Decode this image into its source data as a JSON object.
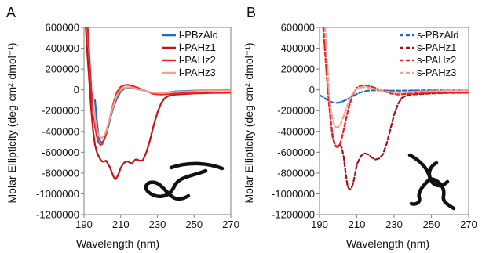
{
  "chart_data": [
    {
      "type": "line",
      "panel_label": "A",
      "xlabel": "Wavelength (nm)",
      "ylabel": "Molar Ellipticity (deg·cm²·dmol⁻¹)",
      "xlim": [
        190,
        270
      ],
      "ylim": [
        -1200000,
        600000
      ],
      "x_ticks": [
        190,
        210,
        230,
        250,
        270
      ],
      "y_ticks": [
        600000,
        400000,
        200000,
        0,
        -200000,
        -400000,
        -600000,
        -800000,
        -1000000,
        -1200000
      ],
      "y_tick_labels": [
        "600000",
        "400000",
        "200000",
        "0",
        "-200000",
        "-400000",
        "-600000",
        "-800000",
        "-1000000",
        "-1200000"
      ],
      "legend_position": "top-right",
      "inset_icon": "wormlike-chain-icon",
      "series": [
        {
          "name": "l-PBzAld",
          "color": "#1f6fb8",
          "dash": "solid",
          "x": [
            196,
            197,
            198,
            199,
            200,
            201,
            202,
            203,
            204,
            205,
            206,
            208,
            210,
            212,
            214,
            216,
            218,
            220,
            222,
            225,
            228,
            232,
            236,
            240,
            250,
            260,
            270
          ],
          "y": [
            -100000,
            -300000,
            -450000,
            -500000,
            -505000,
            -480000,
            -430000,
            -370000,
            -300000,
            -230000,
            -170000,
            -80000,
            -15000,
            10000,
            20000,
            18000,
            12000,
            3000,
            -5000,
            -20000,
            -30000,
            -35000,
            -25000,
            -15000,
            -8000,
            -5000,
            -3000
          ]
        },
        {
          "name": "l-PAHz1",
          "color": "#c0141c",
          "dash": "solid",
          "x": [
            191,
            192,
            193,
            194,
            195,
            196,
            197,
            198,
            199,
            200,
            201,
            202,
            204,
            206,
            207,
            208,
            209,
            210,
            211,
            212,
            213,
            214,
            215,
            216,
            217,
            218,
            219,
            220,
            222,
            224,
            226,
            228,
            230,
            232,
            234,
            236,
            238,
            240,
            245,
            250,
            260,
            270
          ],
          "y": [
            600000,
            300000,
            50000,
            -200000,
            -400000,
            -530000,
            -600000,
            -640000,
            -670000,
            -690000,
            -690000,
            -680000,
            -740000,
            -830000,
            -860000,
            -840000,
            -800000,
            -750000,
            -720000,
            -700000,
            -690000,
            -690000,
            -700000,
            -710000,
            -690000,
            -670000,
            -670000,
            -680000,
            -680000,
            -600000,
            -480000,
            -340000,
            -220000,
            -130000,
            -80000,
            -60000,
            -50000,
            -45000,
            -40000,
            -35000,
            -30000,
            -28000
          ]
        },
        {
          "name": "l-PAHz2",
          "color": "#e8232a",
          "dash": "solid",
          "x": [
            192,
            193,
            194,
            195,
            196,
            197,
            198,
            199,
            200,
            201,
            202,
            203,
            204,
            205,
            206,
            208,
            210,
            212,
            214,
            216,
            218,
            220,
            222,
            225,
            228,
            232,
            236,
            240,
            250,
            260,
            270
          ],
          "y": [
            600000,
            300000,
            0,
            -200000,
            -350000,
            -450000,
            -510000,
            -530000,
            -520000,
            -480000,
            -420000,
            -350000,
            -280000,
            -200000,
            -130000,
            -20000,
            30000,
            45000,
            48000,
            40000,
            28000,
            15000,
            0,
            -20000,
            -40000,
            -45000,
            -40000,
            -35000,
            -30000,
            -28000,
            -25000
          ]
        },
        {
          "name": "l-PAHz3",
          "color": "#f4a090",
          "dash": "solid",
          "x": [
            195,
            196,
            197,
            198,
            199,
            200,
            201,
            202,
            203,
            204,
            205,
            206,
            208,
            210,
            212,
            214,
            216,
            218,
            220,
            222,
            225,
            228,
            232,
            236,
            240,
            250,
            260,
            270
          ],
          "y": [
            -150000,
            -280000,
            -380000,
            -440000,
            -460000,
            -460000,
            -440000,
            -400000,
            -340000,
            -280000,
            -210000,
            -150000,
            -50000,
            0,
            20000,
            25000,
            22000,
            15000,
            5000,
            -5000,
            -20000,
            -28000,
            -32000,
            -28000,
            -20000,
            -12000,
            -8000,
            -5000
          ]
        }
      ]
    },
    {
      "type": "line",
      "panel_label": "B",
      "xlabel": "Wavelength (nm)",
      "ylabel": "Molar Ellipticity (deg·cm²·dmol⁻¹)",
      "xlim": [
        190,
        270
      ],
      "ylim": [
        -1200000,
        600000
      ],
      "x_ticks": [
        190,
        210,
        230,
        250,
        270
      ],
      "y_ticks": [
        600000,
        400000,
        200000,
        0,
        -200000,
        -400000,
        -600000,
        -800000,
        -1000000,
        -1200000
      ],
      "y_tick_labels": [
        "600000",
        "400000",
        "200000",
        "0",
        "-200000",
        "-400000",
        "-600000",
        "-800000",
        "-1000000",
        "-1200000"
      ],
      "legend_position": "top-right",
      "inset_icon": "star-polymer-icon",
      "series": [
        {
          "name": "s-PBzAld",
          "color": "#1f6fb8",
          "dash": "dashed",
          "x": [
            190,
            192,
            194,
            196,
            198,
            200,
            202,
            204,
            206,
            208,
            210,
            212,
            214,
            216,
            218,
            220,
            224,
            228,
            232,
            240,
            250,
            260,
            270
          ],
          "y": [
            -50000,
            -70000,
            -95000,
            -115000,
            -125000,
            -125000,
            -115000,
            -100000,
            -80000,
            -60000,
            -40000,
            -25000,
            -15000,
            -8000,
            -5000,
            -5000,
            -6000,
            -8000,
            -8000,
            -6000,
            -5000,
            -5000,
            -5000
          ]
        },
        {
          "name": "s-PAHz1",
          "color": "#a01018",
          "dash": "dashed",
          "x": [
            192,
            193,
            194,
            195,
            196,
            197,
            198,
            199,
            200,
            201,
            202,
            203,
            204,
            205,
            206,
            207,
            208,
            209,
            210,
            212,
            214,
            216,
            218,
            220,
            222,
            224,
            226,
            228,
            230,
            232,
            234,
            236,
            238,
            240,
            245,
            250,
            260,
            270
          ],
          "y": [
            600000,
            400000,
            150000,
            -100000,
            -300000,
            -450000,
            -520000,
            -545000,
            -540000,
            -520000,
            -560000,
            -650000,
            -800000,
            -920000,
            -960000,
            -950000,
            -900000,
            -820000,
            -720000,
            -640000,
            -610000,
            -620000,
            -650000,
            -670000,
            -660000,
            -620000,
            -520000,
            -380000,
            -240000,
            -140000,
            -80000,
            -60000,
            -50000,
            -45000,
            -40000,
            -35000,
            -30000,
            -28000
          ]
        },
        {
          "name": "s-PAHz2",
          "color": "#e8232a",
          "dash": "dashed",
          "x": [
            192,
            193,
            194,
            195,
            196,
            197,
            198,
            199,
            200,
            201,
            202,
            203,
            204,
            205,
            206,
            208,
            210,
            212,
            214,
            216,
            218,
            220,
            222,
            225,
            228,
            232,
            236,
            240,
            250,
            260,
            270
          ],
          "y": [
            600000,
            350000,
            100000,
            -120000,
            -300000,
            -430000,
            -510000,
            -550000,
            -550000,
            -520000,
            -460000,
            -380000,
            -300000,
            -220000,
            -150000,
            -40000,
            20000,
            40000,
            45000,
            40000,
            30000,
            18000,
            5000,
            -15000,
            -35000,
            -45000,
            -40000,
            -35000,
            -30000,
            -28000,
            -25000
          ]
        },
        {
          "name": "s-PAHz3",
          "color": "#f4a090",
          "dash": "dashed",
          "x": [
            193,
            194,
            195,
            196,
            197,
            198,
            199,
            200,
            201,
            202,
            203,
            204,
            205,
            206,
            208,
            210,
            212,
            214,
            216,
            218,
            220,
            222,
            225,
            228,
            232,
            236,
            240,
            250,
            260,
            270
          ],
          "y": [
            600000,
            300000,
            0,
            -180000,
            -280000,
            -340000,
            -360000,
            -360000,
            -340000,
            -300000,
            -250000,
            -200000,
            -150000,
            -100000,
            -30000,
            10000,
            22000,
            25000,
            22000,
            15000,
            5000,
            -3000,
            -15000,
            -22000,
            -25000,
            -22000,
            -18000,
            -12000,
            -8000,
            -5000
          ]
        }
      ]
    }
  ]
}
